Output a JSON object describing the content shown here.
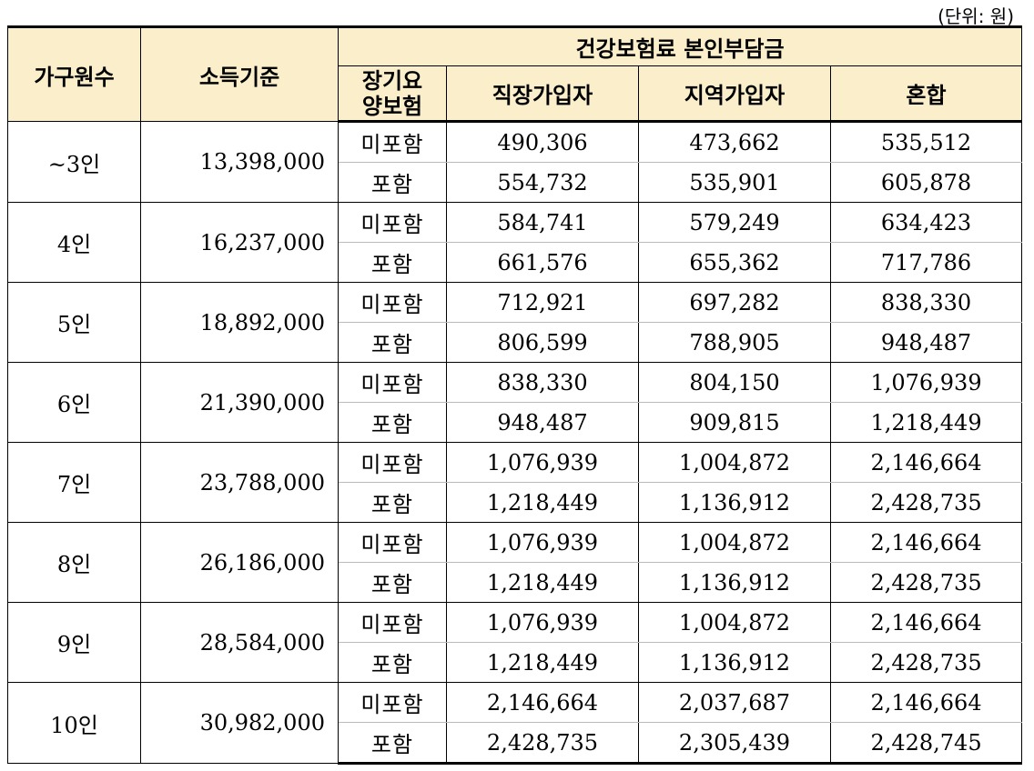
{
  "unit_note": "(단위: 원)",
  "headers": {
    "household": "가구원수",
    "income": "소득기준",
    "group": "건강보험료 본인부담금",
    "ltc": "장기요\n양보험",
    "employee": "직장가입자",
    "regional": "지역가입자",
    "mixed": "혼합"
  },
  "rows": [
    {
      "household": "~3인",
      "income": "13,398,000",
      "sub": [
        {
          "ltc": "미포함",
          "employee": "490,306",
          "regional": "473,662",
          "mixed": "535,512"
        },
        {
          "ltc": "포함",
          "employee": "554,732",
          "regional": "535,901",
          "mixed": "605,878"
        }
      ]
    },
    {
      "household": "4인",
      "income": "16,237,000",
      "sub": [
        {
          "ltc": "미포함",
          "employee": "584,741",
          "regional": "579,249",
          "mixed": "634,423"
        },
        {
          "ltc": "포함",
          "employee": "661,576",
          "regional": "655,362",
          "mixed": "717,786"
        }
      ]
    },
    {
      "household": "5인",
      "income": "18,892,000",
      "sub": [
        {
          "ltc": "미포함",
          "employee": "712,921",
          "regional": "697,282",
          "mixed": "838,330"
        },
        {
          "ltc": "포함",
          "employee": "806,599",
          "regional": "788,905",
          "mixed": "948,487"
        }
      ]
    },
    {
      "household": "6인",
      "income": "21,390,000",
      "sub": [
        {
          "ltc": "미포함",
          "employee": "838,330",
          "regional": "804,150",
          "mixed": "1,076,939"
        },
        {
          "ltc": "포함",
          "employee": "948,487",
          "regional": "909,815",
          "mixed": "1,218,449"
        }
      ]
    },
    {
      "household": "7인",
      "income": "23,788,000",
      "sub": [
        {
          "ltc": "미포함",
          "employee": "1,076,939",
          "regional": "1,004,872",
          "mixed": "2,146,664"
        },
        {
          "ltc": "포함",
          "employee": "1,218,449",
          "regional": "1,136,912",
          "mixed": "2,428,735"
        }
      ]
    },
    {
      "household": "8인",
      "income": "26,186,000",
      "sub": [
        {
          "ltc": "미포함",
          "employee": "1,076,939",
          "regional": "1,004,872",
          "mixed": "2,146,664"
        },
        {
          "ltc": "포함",
          "employee": "1,218,449",
          "regional": "1,136,912",
          "mixed": "2,428,735"
        }
      ]
    },
    {
      "household": "9인",
      "income": "28,584,000",
      "sub": [
        {
          "ltc": "미포함",
          "employee": "1,076,939",
          "regional": "1,004,872",
          "mixed": "2,146,664"
        },
        {
          "ltc": "포함",
          "employee": "1,218,449",
          "regional": "1,136,912",
          "mixed": "2,428,735"
        }
      ]
    },
    {
      "household": "10인",
      "income": "30,982,000",
      "sub": [
        {
          "ltc": "미포함",
          "employee": "2,146,664",
          "regional": "2,037,687",
          "mixed": "2,146,664"
        },
        {
          "ltc": "포함",
          "employee": "2,428,735",
          "regional": "2,305,439",
          "mixed": "2,428,745"
        }
      ]
    }
  ]
}
